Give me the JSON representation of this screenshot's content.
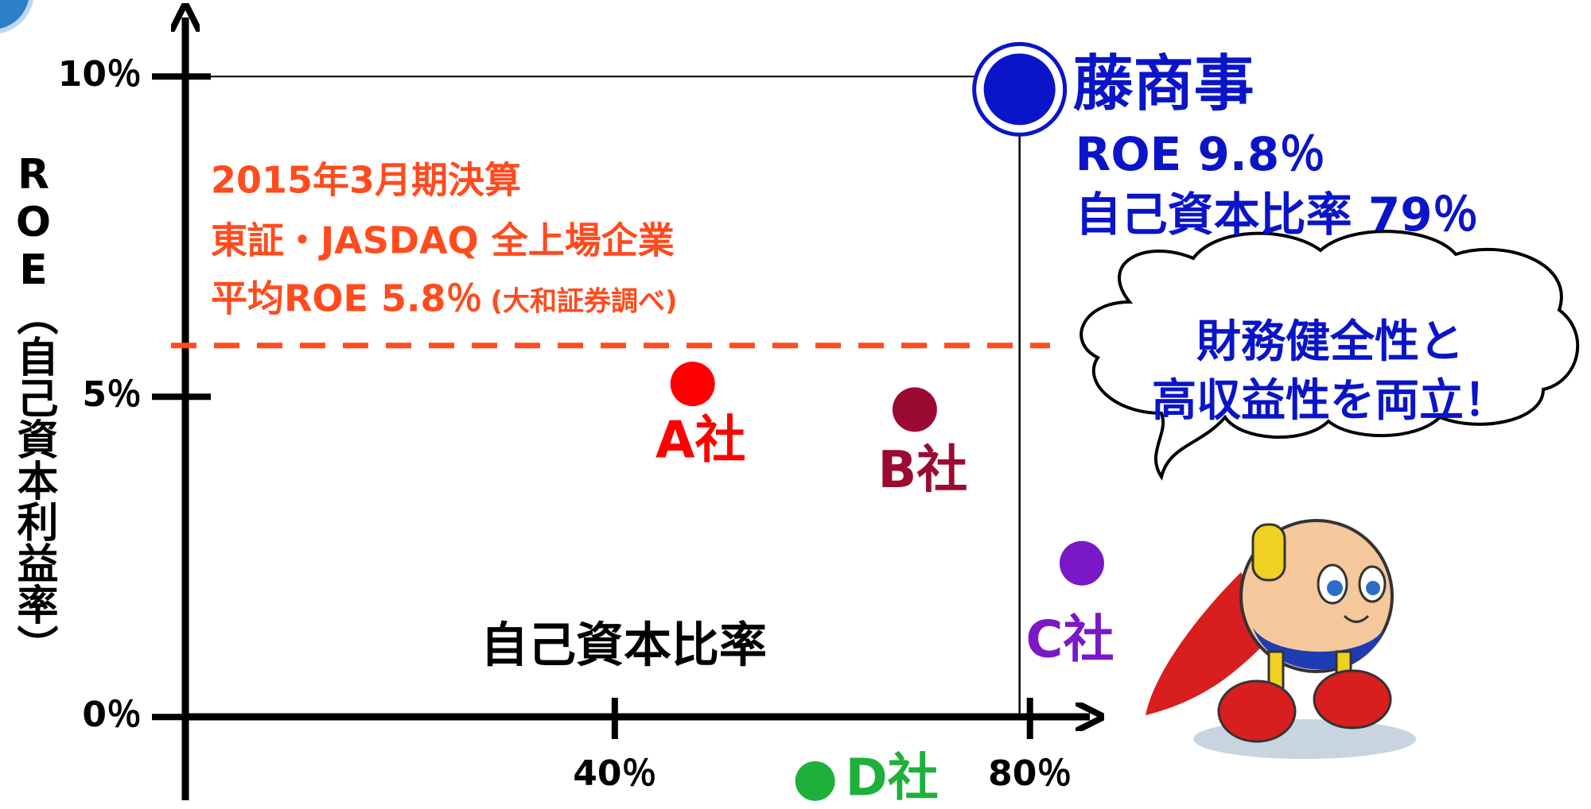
{
  "chart_data": {
    "type": "scatter",
    "x_label": "自己資本比率",
    "y_label": "ROE（自己資本利益率）",
    "xlim": [
      0,
      86
    ],
    "ylim": [
      -1.3,
      11
    ],
    "xticks": [
      {
        "value": 40,
        "label": "40％"
      },
      {
        "value": 80,
        "label": "80％"
      }
    ],
    "yticks": [
      {
        "value": 0,
        "label": "0％"
      },
      {
        "value": 5,
        "label": "5％"
      },
      {
        "value": 10,
        "label": "10％"
      }
    ],
    "series": [
      {
        "name": "A社",
        "color": "#ff0000",
        "x": [
          47.5
        ],
        "values": [
          5.2
        ]
      },
      {
        "name": "B社",
        "color": "#9b0a32",
        "x": [
          68.9
        ],
        "values": [
          4.8
        ]
      },
      {
        "name": "C社",
        "color": "#7a18c8",
        "x": [
          85
        ],
        "values": [
          2.4
        ]
      },
      {
        "name": "D社",
        "color": "#1fb03c",
        "x": [
          59.3
        ],
        "values": [
          -1.0
        ]
      },
      {
        "name": "藤商事",
        "color": "#0a14c8",
        "x": [
          79
        ],
        "values": [
          9.8
        ]
      }
    ],
    "highlight_lines": [
      "ROE 9.8％",
      "自己資本比率 79％"
    ],
    "average_roe": 5.8,
    "average_color": "#ff4b1e",
    "annotation_lines": [
      "2015年3月期決算",
      "東証・JASDAQ 全上場企業",
      "平均ROE 5.8％"
    ],
    "annotation_source": "(大和証券調べ)",
    "speech_bubble": [
      "財務健全性と",
      "高収益性を両立！"
    ]
  }
}
